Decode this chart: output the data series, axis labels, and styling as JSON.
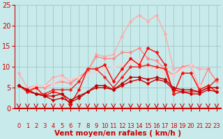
{
  "title": "",
  "xlabel": "Vent moyen/en rafales ( km/h )",
  "xlim": [
    -0.5,
    23.5
  ],
  "ylim": [
    0,
    25
  ],
  "xticks": [
    0,
    1,
    2,
    3,
    4,
    5,
    6,
    7,
    8,
    9,
    10,
    11,
    12,
    13,
    14,
    15,
    16,
    17,
    18,
    19,
    20,
    21,
    22,
    23
  ],
  "yticks": [
    0,
    5,
    10,
    15,
    20,
    25
  ],
  "bg_color": "#c8eaea",
  "grid_color": "#a0c8c8",
  "lines": [
    {
      "x": [
        0,
        1,
        2,
        3,
        4,
        5,
        6,
        7,
        8,
        9,
        10,
        11,
        12,
        13,
        14,
        15,
        16,
        17,
        18,
        19,
        20,
        21,
        22,
        23
      ],
      "y": [
        8.5,
        5.0,
        5.5,
        5.5,
        7.5,
        8.0,
        6.5,
        7.5,
        9.0,
        13.0,
        12.5,
        13.0,
        17.5,
        21.0,
        22.5,
        21.0,
        22.5,
        18.0,
        9.5,
        10.0,
        10.5,
        9.5,
        9.5,
        6.5
      ],
      "color": "#ffaaaa",
      "lw": 1.0,
      "marker": "D",
      "ms": 2.5
    },
    {
      "x": [
        0,
        1,
        2,
        3,
        4,
        5,
        6,
        7,
        8,
        9,
        10,
        11,
        12,
        13,
        14,
        15,
        16,
        17,
        18,
        19,
        20,
        21,
        22,
        23
      ],
      "y": [
        5.5,
        4.5,
        5.0,
        5.0,
        6.0,
        6.5,
        6.0,
        7.5,
        9.0,
        12.5,
        12.0,
        12.0,
        13.5,
        13.5,
        14.5,
        12.0,
        11.5,
        9.5,
        8.0,
        10.0,
        10.5,
        5.0,
        9.5,
        6.5
      ],
      "color": "#ff8888",
      "lw": 1.0,
      "marker": "D",
      "ms": 2.5
    },
    {
      "x": [
        0,
        1,
        2,
        3,
        4,
        5,
        6,
        7,
        8,
        9,
        10,
        11,
        12,
        13,
        14,
        15,
        16,
        17,
        18,
        19,
        20,
        21,
        22,
        23
      ],
      "y": [
        5.5,
        4.5,
        5.5,
        5.5,
        6.0,
        7.0,
        7.0,
        7.5,
        8.5,
        9.0,
        9.5,
        10.0,
        10.5,
        11.0,
        11.5,
        10.0,
        9.5,
        8.5,
        8.0,
        9.5,
        10.5,
        5.5,
        5.5,
        4.5
      ],
      "color": "#ffcccc",
      "lw": 1.0,
      "marker": "D",
      "ms": 2.5
    },
    {
      "x": [
        0,
        1,
        2,
        3,
        4,
        5,
        6,
        7,
        8,
        9,
        10,
        11,
        12,
        13,
        14,
        15,
        16,
        17,
        18,
        19,
        20,
        21,
        22,
        23
      ],
      "y": [
        5.5,
        4.0,
        5.0,
        3.0,
        4.0,
        3.5,
        1.0,
        4.5,
        9.5,
        9.5,
        10.5,
        6.5,
        9.5,
        12.0,
        10.5,
        14.5,
        13.5,
        10.5,
        3.5,
        8.5,
        8.5,
        4.5,
        5.5,
        4.0
      ],
      "color": "#ff0000",
      "lw": 1.0,
      "marker": "D",
      "ms": 2.5
    },
    {
      "x": [
        0,
        1,
        2,
        3,
        4,
        5,
        6,
        7,
        8,
        9,
        10,
        11,
        12,
        13,
        14,
        15,
        16,
        17,
        18,
        19,
        20,
        21,
        22,
        23
      ],
      "y": [
        5.5,
        4.0,
        3.5,
        3.5,
        4.5,
        4.5,
        4.5,
        6.5,
        9.5,
        9.5,
        7.5,
        5.0,
        7.5,
        10.0,
        10.0,
        10.5,
        10.0,
        9.5,
        3.5,
        4.0,
        4.0,
        4.0,
        5.0,
        7.0
      ],
      "color": "#ee2222",
      "lw": 1.0,
      "marker": "D",
      "ms": 2.5
    },
    {
      "x": [
        0,
        1,
        2,
        3,
        4,
        5,
        6,
        7,
        8,
        9,
        10,
        11,
        12,
        13,
        14,
        15,
        16,
        17,
        18,
        19,
        20,
        21,
        22,
        23
      ],
      "y": [
        5.5,
        4.5,
        3.5,
        3.0,
        2.0,
        2.5,
        1.5,
        2.5,
        4.0,
        5.0,
        5.0,
        4.5,
        5.5,
        6.5,
        7.0,
        6.0,
        7.0,
        6.5,
        4.5,
        4.0,
        3.5,
        3.5,
        4.5,
        4.0
      ],
      "color": "#cc0000",
      "lw": 1.0,
      "marker": "D",
      "ms": 2.5
    },
    {
      "x": [
        0,
        1,
        2,
        3,
        4,
        5,
        6,
        7,
        8,
        9,
        10,
        11,
        12,
        13,
        14,
        15,
        16,
        17,
        18,
        19,
        20,
        21,
        22,
        23
      ],
      "y": [
        5.5,
        4.5,
        3.5,
        3.0,
        3.0,
        3.5,
        2.0,
        3.0,
        4.0,
        5.5,
        5.5,
        4.5,
        6.0,
        7.5,
        7.5,
        7.0,
        7.5,
        7.0,
        5.0,
        4.5,
        4.5,
        4.0,
        5.0,
        5.0
      ],
      "color": "#bb0000",
      "lw": 1.0,
      "marker": "D",
      "ms": 2.5
    }
  ],
  "xlabel_color": "#cc0000",
  "xlabel_fontsize": 7.5,
  "xlabel_fontweight": "bold",
  "tick_color": "#cc0000",
  "tick_fontsize": 6,
  "ytick_fontsize": 7,
  "spine_color": "#cc0000",
  "bottom_line_color": "#cc0000"
}
